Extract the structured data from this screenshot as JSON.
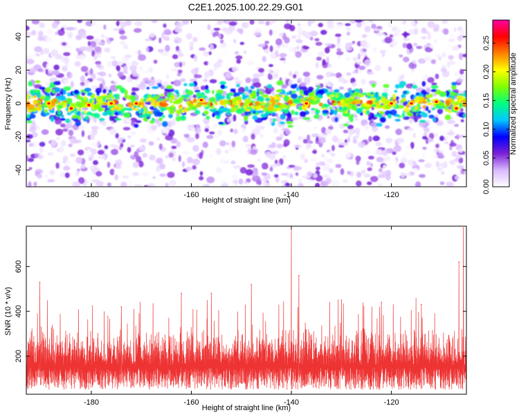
{
  "title": "C2E1.2025.100.22.29.G01",
  "chart_data": [
    {
      "type": "heatmap",
      "xlabel": "Height of straight line (km)",
      "ylabel": "Frequency (Hz)",
      "xlim": [
        -193,
        -105
      ],
      "ylim": [
        -50,
        50
      ],
      "xticks": [
        -180,
        -160,
        -140,
        -120
      ],
      "yticks": [
        -40,
        -20,
        0,
        20,
        40
      ],
      "grid": false,
      "band_center_hz": 0,
      "band_halfwidth_hz": 8,
      "hotspots": [
        {
          "x": -188.5,
          "y": 0
        },
        {
          "x": -184,
          "y": -3
        },
        {
          "x": -180.5,
          "y": -1
        },
        {
          "x": -176,
          "y": 0
        },
        {
          "x": -171,
          "y": 0
        },
        {
          "x": -158,
          "y": 2
        },
        {
          "x": -137,
          "y": 0
        },
        {
          "x": -120,
          "y": 0
        },
        {
          "x": -116,
          "y": 0
        },
        {
          "x": -111,
          "y": 1
        },
        {
          "x": -107,
          "y": -3
        }
      ],
      "colorbar": {
        "label": "Normalized spectral amplitude",
        "range": [
          0,
          0.29
        ],
        "ticks": [
          "0.00",
          "0.05",
          "0.10",
          "0.15",
          "0.20",
          "0.25"
        ],
        "tick_values": [
          0,
          0.05,
          0.1,
          0.15,
          0.2,
          0.25
        ],
        "colormap": [
          "#ffffff",
          "#d9b8ff",
          "#7b1fd6",
          "#0000ff",
          "#00c8ff",
          "#00ff80",
          "#80ff00",
          "#ffff00",
          "#ff8000",
          "#ff0000",
          "#ff00a0"
        ]
      }
    },
    {
      "type": "line",
      "xlabel": "Height of straight line (km)",
      "ylabel": "SNR (10 * v/v)",
      "xlim": [
        -193,
        -105
      ],
      "ylim": [
        30,
        780
      ],
      "xticks": [
        -180,
        -160,
        -140,
        -120
      ],
      "yticks": [
        200,
        400,
        600
      ],
      "grid": false,
      "series": [
        {
          "color": "#ee3333",
          "baseline": 160,
          "noise_range": [
            50,
            340
          ],
          "peaks": [
            {
              "x": -190.3,
              "y": 530
            },
            {
              "x": -174,
              "y": 420
            },
            {
              "x": -162,
              "y": 480
            },
            {
              "x": -156,
              "y": 480
            },
            {
              "x": -148,
              "y": 520
            },
            {
              "x": -140,
              "y": 770
            },
            {
              "x": -138.5,
              "y": 560
            },
            {
              "x": -130,
              "y": 450
            },
            {
              "x": -122,
              "y": 440
            },
            {
              "x": -114,
              "y": 430
            },
            {
              "x": -106.5,
              "y": 620
            },
            {
              "x": -105.6,
              "y": 780
            }
          ]
        }
      ]
    }
  ]
}
